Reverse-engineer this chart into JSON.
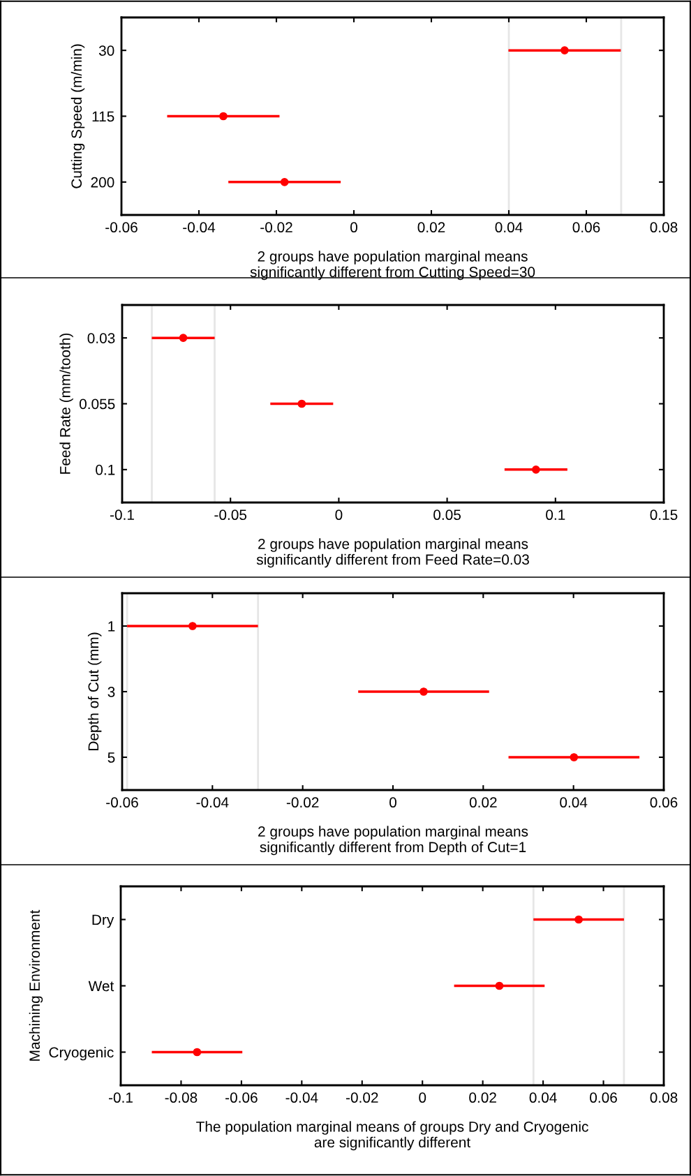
{
  "chart_data": [
    {
      "type": "scatter",
      "orientation": "horizontal",
      "ylabel": "Cutting Speed (m/min)",
      "xlabel": "2 groups have population marginal means\nsignificantly different from Cutting Speed=30",
      "categories": [
        "30",
        "115",
        "200"
      ],
      "series": [
        {
          "color": "#ff0000",
          "values": [
            0.0544,
            -0.0337,
            -0.0179
          ],
          "errors": [
            0.0145,
            0.0145,
            0.0145
          ]
        }
      ],
      "xlim": [
        -0.06,
        0.08
      ],
      "xticks": [
        -0.06,
        -0.04,
        -0.02,
        0,
        0.02,
        0.04,
        0.06,
        0.08
      ],
      "marker": "circle",
      "grid": false,
      "ref_lines": [
        {
          "axis": "x",
          "value": 0.04,
          "color": "#e6e6e6"
        },
        {
          "axis": "x",
          "value": 0.069,
          "color": "#e6e6e6"
        }
      ]
    },
    {
      "type": "scatter",
      "orientation": "horizontal",
      "ylabel": "Feed Rate (mm/tooth)",
      "xlabel": "2 groups have population marginal means\nsignificantly different from Feed Rate=0.03",
      "categories": [
        "0.03",
        "0.055",
        "0.1"
      ],
      "series": [
        {
          "color": "#ff0000",
          "values": [
            -0.0718,
            -0.0171,
            0.091
          ],
          "errors": [
            0.0145,
            0.0145,
            0.0145
          ]
        }
      ],
      "xlim": [
        -0.1,
        0.15
      ],
      "xticks": [
        -0.1,
        -0.05,
        0,
        0.05,
        0.1,
        0.15
      ],
      "marker": "circle",
      "grid": false,
      "ref_lines": [
        {
          "axis": "x",
          "value": -0.0863,
          "color": "#e6e6e6"
        },
        {
          "axis": "x",
          "value": -0.0573,
          "color": "#e6e6e6"
        }
      ]
    },
    {
      "type": "scatter",
      "orientation": "horizontal",
      "ylabel": "Depth of Cut (mm)",
      "xlabel": "2 groups have population marginal means\nsignificantly different from Depth of Cut=1",
      "categories": [
        "1",
        "3",
        "5"
      ],
      "series": [
        {
          "color": "#ff0000",
          "values": [
            -0.0444,
            0.0068,
            0.0401
          ],
          "errors": [
            0.0145,
            0.0145,
            0.0145
          ]
        }
      ],
      "xlim": [
        -0.06,
        0.06
      ],
      "xticks": [
        -0.06,
        -0.04,
        -0.02,
        0,
        0.02,
        0.04,
        0.06
      ],
      "marker": "circle",
      "grid": false,
      "ref_lines": [
        {
          "axis": "x",
          "value": -0.0589,
          "color": "#e6e6e6"
        },
        {
          "axis": "x",
          "value": -0.0299,
          "color": "#e6e6e6"
        }
      ]
    },
    {
      "type": "scatter",
      "orientation": "horizontal",
      "ylabel": "Machining Environment",
      "xlabel": "The population marginal means of groups Dry and Cryogenic\nare significantly different",
      "categories": [
        "Dry",
        "Wet",
        "Cryogenic"
      ],
      "series": [
        {
          "color": "#ff0000",
          "values": [
            0.0518,
            0.0255,
            -0.0747
          ],
          "errors": [
            0.015,
            0.015,
            0.015
          ]
        }
      ],
      "xlim": [
        -0.1,
        0.08
      ],
      "xticks": [
        -0.1,
        -0.08,
        -0.06,
        -0.04,
        -0.02,
        0,
        0.02,
        0.04,
        0.06,
        0.08
      ],
      "marker": "circle",
      "grid": false,
      "ref_lines": [
        {
          "axis": "x",
          "value": 0.0368,
          "color": "#e6e6e6"
        },
        {
          "axis": "x",
          "value": 0.0668,
          "color": "#e6e6e6"
        }
      ]
    }
  ]
}
